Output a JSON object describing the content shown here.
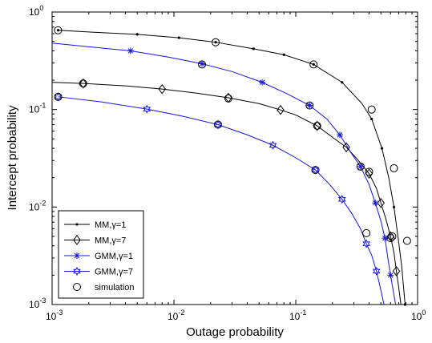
{
  "chart_data": {
    "type": "line",
    "xlabel": "Outage probability",
    "ylabel": "Intercept probability",
    "xscale": "log",
    "yscale": "log",
    "xlim": [
      0.001,
      1
    ],
    "ylim": [
      0.001,
      1
    ],
    "grid": false,
    "legend_position": "bottom-left",
    "x_ticks": [
      {
        "base": "10",
        "exp": "-3"
      },
      {
        "base": "10",
        "exp": "-2"
      },
      {
        "base": "10",
        "exp": "-1"
      },
      {
        "base": "10",
        "exp": "0"
      }
    ],
    "y_ticks": [
      {
        "base": "10",
        "exp": "-3"
      },
      {
        "base": "10",
        "exp": "-2"
      },
      {
        "base": "10",
        "exp": "-1"
      },
      {
        "base": "10",
        "exp": "0"
      }
    ],
    "series": [
      {
        "name": "MM,γ=1",
        "color": "#000000",
        "marker": "dot",
        "curve": [
          [
            0.00112,
            0.65
          ],
          [
            0.0022,
            0.62
          ],
          [
            0.005,
            0.59
          ],
          [
            0.011,
            0.545
          ],
          [
            0.022,
            0.49
          ],
          [
            0.045,
            0.42
          ],
          [
            0.08,
            0.365
          ],
          [
            0.14,
            0.29
          ],
          [
            0.24,
            0.19
          ],
          [
            0.35,
            0.115
          ],
          [
            0.42,
            0.08
          ],
          [
            0.51,
            0.04
          ],
          [
            0.58,
            0.02
          ],
          [
            0.64,
            0.01
          ],
          [
            0.69,
            0.005
          ],
          [
            0.74,
            0.0025
          ],
          [
            0.79,
            0.001
          ]
        ],
        "markers": [
          [
            0.00112,
            0.65
          ],
          [
            0.005,
            0.59
          ],
          [
            0.011,
            0.545
          ],
          [
            0.022,
            0.49
          ],
          [
            0.045,
            0.42
          ],
          [
            0.08,
            0.365
          ],
          [
            0.14,
            0.29
          ],
          [
            0.24,
            0.19
          ],
          [
            0.42,
            0.08
          ],
          [
            0.51,
            0.04
          ],
          [
            0.64,
            0.01
          ],
          [
            0.79,
            0.001
          ]
        ]
      },
      {
        "name": "MM,γ=7",
        "color": "#000000",
        "marker": "diamond",
        "curve": [
          [
            0.001,
            0.19
          ],
          [
            0.0018,
            0.185
          ],
          [
            0.004,
            0.175
          ],
          [
            0.008,
            0.162
          ],
          [
            0.015,
            0.148
          ],
          [
            0.028,
            0.132
          ],
          [
            0.05,
            0.115
          ],
          [
            0.075,
            0.099
          ],
          [
            0.1,
            0.088
          ],
          [
            0.15,
            0.068
          ],
          [
            0.2,
            0.052
          ],
          [
            0.26,
            0.041
          ],
          [
            0.32,
            0.031
          ],
          [
            0.4,
            0.022
          ],
          [
            0.46,
            0.0155
          ],
          [
            0.5,
            0.011
          ],
          [
            0.55,
            0.0075
          ],
          [
            0.6,
            0.005
          ],
          [
            0.64,
            0.0034
          ],
          [
            0.67,
            0.0022
          ],
          [
            0.7,
            0.0015
          ],
          [
            0.73,
            0.001
          ]
        ],
        "markers": [
          [
            0.0018,
            0.185
          ],
          [
            0.008,
            0.162
          ],
          [
            0.028,
            0.132
          ],
          [
            0.075,
            0.099
          ],
          [
            0.15,
            0.068
          ],
          [
            0.26,
            0.041
          ],
          [
            0.4,
            0.022
          ],
          [
            0.5,
            0.011
          ],
          [
            0.6,
            0.005
          ],
          [
            0.67,
            0.0022
          ]
        ]
      },
      {
        "name": "GMM,γ=1",
        "color": "#1414e0",
        "marker": "star",
        "curve": [
          [
            0.001,
            0.48
          ],
          [
            0.002,
            0.44
          ],
          [
            0.0044,
            0.4
          ],
          [
            0.009,
            0.345
          ],
          [
            0.017,
            0.295
          ],
          [
            0.03,
            0.245
          ],
          [
            0.053,
            0.19
          ],
          [
            0.085,
            0.145
          ],
          [
            0.13,
            0.11
          ],
          [
            0.18,
            0.08
          ],
          [
            0.23,
            0.055
          ],
          [
            0.28,
            0.037
          ],
          [
            0.34,
            0.026
          ],
          [
            0.4,
            0.017
          ],
          [
            0.45,
            0.011
          ],
          [
            0.5,
            0.0072
          ],
          [
            0.54,
            0.0048
          ],
          [
            0.57,
            0.003
          ],
          [
            0.6,
            0.002
          ],
          [
            0.63,
            0.0014
          ],
          [
            0.66,
            0.001
          ]
        ],
        "markers": [
          [
            0.0044,
            0.4
          ],
          [
            0.017,
            0.295
          ],
          [
            0.053,
            0.19
          ],
          [
            0.13,
            0.11
          ],
          [
            0.23,
            0.055
          ],
          [
            0.34,
            0.026
          ],
          [
            0.45,
            0.011
          ],
          [
            0.54,
            0.0048
          ],
          [
            0.6,
            0.002
          ]
        ]
      },
      {
        "name": "GMM,γ=7",
        "color": "#1414e0",
        "marker": "hexagram",
        "curve": [
          [
            0.00112,
            0.135
          ],
          [
            0.0025,
            0.12
          ],
          [
            0.006,
            0.101
          ],
          [
            0.012,
            0.085
          ],
          [
            0.023,
            0.07
          ],
          [
            0.04,
            0.055
          ],
          [
            0.065,
            0.043
          ],
          [
            0.1,
            0.032
          ],
          [
            0.145,
            0.024
          ],
          [
            0.19,
            0.017
          ],
          [
            0.24,
            0.012
          ],
          [
            0.29,
            0.0085
          ],
          [
            0.34,
            0.006
          ],
          [
            0.38,
            0.0042
          ],
          [
            0.42,
            0.0032
          ],
          [
            0.46,
            0.0022
          ],
          [
            0.5,
            0.0014
          ],
          [
            0.53,
            0.001
          ]
        ],
        "markers": [
          [
            0.00112,
            0.135
          ],
          [
            0.006,
            0.101
          ],
          [
            0.023,
            0.07
          ],
          [
            0.065,
            0.043
          ],
          [
            0.145,
            0.024
          ],
          [
            0.24,
            0.012
          ],
          [
            0.38,
            0.0042
          ],
          [
            0.46,
            0.0022
          ]
        ]
      }
    ],
    "simulation": {
      "name": "simulation",
      "color": "#000000",
      "marker": "circle",
      "points": [
        [
          0.00112,
          0.65
        ],
        [
          0.022,
          0.49
        ],
        [
          0.14,
          0.29
        ],
        [
          0.42,
          0.1
        ],
        [
          0.64,
          0.025
        ],
        [
          0.82,
          0.0045
        ],
        [
          0.0018,
          0.185
        ],
        [
          0.028,
          0.13
        ],
        [
          0.15,
          0.068
        ],
        [
          0.4,
          0.023
        ],
        [
          0.62,
          0.005
        ],
        [
          0.017,
          0.29
        ],
        [
          0.13,
          0.11
        ],
        [
          0.34,
          0.026
        ],
        [
          0.6,
          0.0048
        ],
        [
          0.00112,
          0.135
        ],
        [
          0.023,
          0.07
        ],
        [
          0.145,
          0.024
        ],
        [
          0.38,
          0.0054
        ]
      ]
    }
  }
}
